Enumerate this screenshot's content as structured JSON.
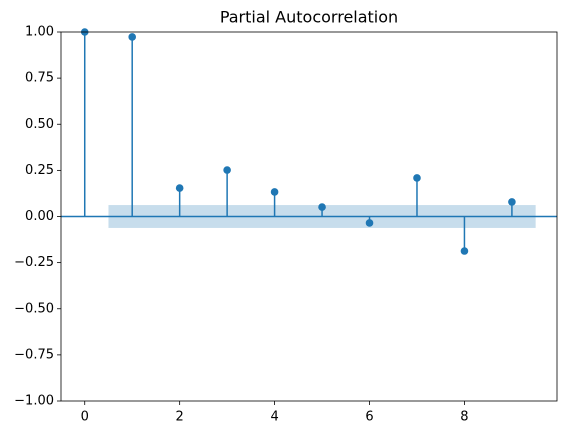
{
  "chart_data": {
    "type": "stem",
    "title": "Partial Autocorrelation",
    "x": [
      0,
      1,
      2,
      3,
      4,
      5,
      6,
      7,
      8,
      9
    ],
    "series": [
      {
        "color": "#1f77b4",
        "values": [
          1.0,
          0.973,
          0.154,
          0.252,
          0.133,
          0.051,
          -0.035,
          0.209,
          -0.187,
          0.079
        ]
      }
    ],
    "confidence_interval": {
      "x": [
        0.5,
        9.5
      ],
      "lower": -0.062,
      "upper": 0.062,
      "color": "#1f77b4"
    },
    "xlim": [
      -0.5,
      9.95
    ],
    "ylim": [
      -1,
      1
    ],
    "xticks": [
      0,
      2,
      4,
      6,
      8
    ],
    "yticks": [
      {
        "value": -1,
        "label": "−1.00"
      },
      {
        "value": -0.75,
        "label": "−0.75"
      },
      {
        "value": -0.5,
        "label": "−0.50"
      },
      {
        "value": -0.25,
        "label": "−0.25"
      },
      {
        "value": 0,
        "label": "0.00"
      },
      {
        "value": 0.25,
        "label": "0.25"
      },
      {
        "value": 0.5,
        "label": "0.50"
      },
      {
        "value": 0.75,
        "label": "0.75"
      },
      {
        "value": 1,
        "label": "1.00"
      }
    ],
    "grid": false
  }
}
